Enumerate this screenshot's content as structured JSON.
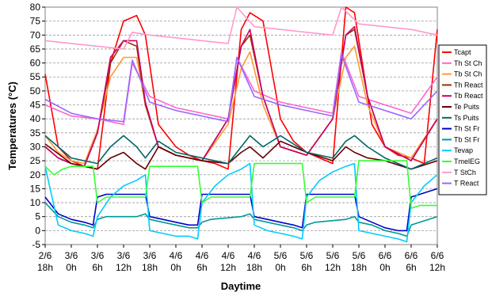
{
  "chart_data": {
    "type": "line",
    "title": "",
    "xlabel": "Daytime",
    "ylabel": "Temperatures (°C)",
    "ylim": [
      -5,
      80
    ],
    "yticks": [
      -5,
      0,
      5,
      10,
      15,
      20,
      25,
      30,
      35,
      40,
      45,
      50,
      55,
      60,
      65,
      70,
      75,
      80
    ],
    "x_tick_labels": [
      [
        "2/6",
        "18h"
      ],
      [
        "3/6",
        "0h"
      ],
      [
        "3/6",
        "6h"
      ],
      [
        "3/6",
        "12h"
      ],
      [
        "3/6",
        "18h"
      ],
      [
        "4/6",
        "0h"
      ],
      [
        "4/6",
        "6h"
      ],
      [
        "4/6",
        "12h"
      ],
      [
        "4/6",
        "18h"
      ],
      [
        "5/6",
        "0h"
      ],
      [
        "5/6",
        "6h"
      ],
      [
        "5/6",
        "12h"
      ],
      [
        "5/6",
        "18h"
      ],
      [
        "6/6",
        "0h"
      ],
      [
        "6/6",
        "6h"
      ],
      [
        "6/6",
        "12h"
      ]
    ],
    "x_unit": "hours since 2/6 18h",
    "grid": "horizontal dashed",
    "legend_position": "right",
    "series": [
      {
        "name": "Tcapt",
        "color": "#ff0000",
        "x": [
          0,
          3,
          6,
          9,
          12,
          15,
          18,
          21,
          23,
          26,
          30,
          33,
          36,
          39,
          42,
          45,
          47,
          50,
          54,
          57,
          60,
          63,
          66,
          69,
          71,
          75,
          78,
          81,
          84,
          87,
          90
        ],
        "y": [
          56,
          30,
          25,
          23,
          22,
          60,
          75,
          77,
          70,
          38,
          30,
          27,
          25,
          24,
          22,
          72,
          78,
          75,
          40,
          32,
          28,
          26,
          24,
          80,
          78,
          38,
          30,
          27,
          26,
          24,
          72
        ]
      },
      {
        "name": "Th St Ch",
        "color": "#ff66cc",
        "x": [
          0,
          6,
          12,
          18,
          20,
          24,
          30,
          36,
          42,
          44,
          48,
          54,
          60,
          66,
          68,
          72,
          78,
          84,
          90
        ],
        "y": [
          45,
          41,
          40,
          38,
          60,
          48,
          44,
          42,
          40,
          62,
          50,
          46,
          44,
          42,
          64,
          48,
          45,
          42,
          55
        ]
      },
      {
        "name": "Tb St Ch",
        "color": "#ff9933",
        "x": [
          0,
          3,
          6,
          9,
          12,
          15,
          18,
          21,
          23,
          26,
          30,
          36,
          42,
          45,
          47,
          50,
          54,
          60,
          66,
          69,
          71,
          74,
          78,
          84,
          90
        ],
        "y": [
          34,
          28,
          25,
          24,
          36,
          55,
          62,
          62,
          45,
          30,
          27,
          25,
          38,
          58,
          64,
          45,
          30,
          27,
          40,
          62,
          66,
          45,
          30,
          26,
          40
        ]
      },
      {
        "name": "Th React",
        "color": "#993300",
        "x": [
          0,
          3,
          6,
          9,
          12,
          15,
          18,
          21,
          23,
          26,
          30,
          36,
          42,
          45,
          47,
          50,
          54,
          60,
          66,
          69,
          71,
          74,
          78,
          84,
          90
        ],
        "y": [
          30,
          26,
          24,
          23,
          35,
          60,
          68,
          66,
          45,
          30,
          27,
          25,
          40,
          66,
          70,
          48,
          30,
          27,
          40,
          70,
          72,
          48,
          30,
          25,
          40
        ]
      },
      {
        "name": "Tb React",
        "color": "#cc0066",
        "x": [
          0,
          3,
          6,
          9,
          12,
          15,
          18,
          21,
          23,
          26,
          30,
          36,
          42,
          45,
          47,
          50,
          54,
          60,
          66,
          69,
          71,
          74,
          78,
          84,
          90
        ],
        "y": [
          30,
          26,
          24,
          23,
          35,
          62,
          68,
          68,
          46,
          30,
          27,
          25,
          40,
          66,
          72,
          48,
          30,
          27,
          40,
          70,
          73,
          48,
          30,
          25,
          40
        ]
      },
      {
        "name": "Te Puits",
        "color": "#660000",
        "x": [
          0,
          6,
          12,
          15,
          18,
          21,
          23,
          26,
          30,
          36,
          42,
          45,
          47,
          50,
          54,
          60,
          66,
          69,
          71,
          74,
          78,
          84,
          90
        ],
        "y": [
          31,
          24,
          22,
          26,
          28,
          24,
          22,
          30,
          27,
          25,
          24,
          28,
          30,
          26,
          32,
          28,
          25,
          30,
          28,
          26,
          25,
          22,
          25
        ]
      },
      {
        "name": "Ts Puits",
        "color": "#006666",
        "x": [
          0,
          6,
          12,
          15,
          18,
          21,
          23,
          26,
          30,
          36,
          42,
          45,
          47,
          50,
          54,
          60,
          66,
          69,
          71,
          74,
          78,
          84,
          90
        ],
        "y": [
          34,
          26,
          24,
          30,
          34,
          30,
          26,
          32,
          28,
          26,
          24,
          30,
          34,
          30,
          34,
          28,
          26,
          32,
          34,
          30,
          26,
          22,
          26
        ]
      },
      {
        "name": "Th St Fr",
        "color": "#0000cc",
        "x": [
          0,
          3,
          6,
          9,
          11,
          12,
          14,
          21,
          23,
          24,
          27,
          30,
          33,
          35,
          36,
          38,
          45,
          47,
          48,
          51,
          54,
          57,
          59,
          60,
          62,
          69,
          71,
          72,
          75,
          78,
          81,
          83,
          84,
          86,
          90
        ],
        "y": [
          12,
          6,
          4,
          3,
          2,
          12,
          13,
          13,
          13,
          5,
          4,
          3,
          2,
          2,
          13,
          13,
          13,
          13,
          5,
          4,
          3,
          2,
          1,
          13,
          13,
          13,
          13,
          5,
          3,
          1,
          0,
          0,
          12,
          13,
          15
        ]
      },
      {
        "name": "Tb St Fr",
        "color": "#009999",
        "x": [
          0,
          3,
          6,
          9,
          11,
          12,
          14,
          21,
          23,
          24,
          27,
          30,
          33,
          35,
          36,
          38,
          45,
          47,
          48,
          51,
          54,
          57,
          59,
          60,
          62,
          69,
          71,
          72,
          75,
          78,
          81,
          83,
          84,
          86,
          90
        ],
        "y": [
          10,
          5,
          3,
          2,
          1,
          4,
          5,
          5,
          6,
          4,
          3,
          2,
          1,
          1,
          3,
          4,
          5,
          6,
          4,
          3,
          2,
          1,
          0,
          2,
          3,
          4,
          5,
          3,
          2,
          0,
          -1,
          -2,
          2,
          3,
          5
        ]
      },
      {
        "name": "Tevap",
        "color": "#00ccff",
        "x": [
          0,
          3,
          6,
          9,
          11,
          12,
          15,
          18,
          21,
          23,
          24,
          27,
          30,
          33,
          35,
          36,
          39,
          42,
          45,
          47,
          48,
          51,
          54,
          57,
          59,
          60,
          63,
          66,
          69,
          71,
          72,
          75,
          78,
          81,
          83,
          84,
          87,
          90
        ],
        "y": [
          23,
          2,
          0,
          -1,
          -2,
          5,
          12,
          16,
          18,
          20,
          0,
          -1,
          -2,
          -2,
          -3,
          10,
          16,
          20,
          22,
          24,
          2,
          0,
          -1,
          -2,
          -3,
          12,
          18,
          21,
          23,
          24,
          0,
          -1,
          -2,
          -3,
          -4,
          10,
          16,
          20
        ]
      },
      {
        "name": "TmelEG",
        "color": "#33ff33",
        "x": [
          0,
          2,
          4,
          6,
          9,
          11,
          12,
          14,
          18,
          21,
          23,
          24,
          26,
          30,
          33,
          35,
          36,
          38,
          42,
          45,
          47,
          48,
          50,
          54,
          57,
          59,
          60,
          62,
          66,
          69,
          71,
          72,
          74,
          78,
          81,
          83,
          84,
          86,
          90
        ],
        "y": [
          23,
          20,
          22,
          23,
          23,
          23,
          10,
          12,
          12,
          12,
          12,
          23,
          23,
          23,
          23,
          23,
          10,
          12,
          12,
          12,
          12,
          24,
          24,
          24,
          24,
          24,
          10,
          12,
          12,
          12,
          12,
          25,
          25,
          25,
          25,
          25,
          8,
          9,
          9
        ]
      },
      {
        "name": "T StCh",
        "color": "#ff99cc",
        "x": [
          0,
          6,
          12,
          18,
          20,
          24,
          30,
          36,
          42,
          44,
          48,
          54,
          60,
          66,
          68,
          72,
          78,
          84,
          90
        ],
        "y": [
          68,
          67,
          66,
          65,
          71,
          70,
          69,
          68,
          67,
          80,
          73,
          72,
          71,
          70,
          80,
          74,
          73,
          72,
          70
        ]
      },
      {
        "name": "T React",
        "color": "#9966ff",
        "x": [
          0,
          6,
          12,
          18,
          20,
          24,
          30,
          36,
          42,
          44,
          48,
          54,
          60,
          66,
          68,
          72,
          78,
          84,
          90
        ],
        "y": [
          47,
          42,
          40,
          39,
          61,
          46,
          43,
          41,
          39,
          62,
          48,
          45,
          43,
          41,
          63,
          46,
          43,
          40,
          50
        ]
      }
    ]
  }
}
